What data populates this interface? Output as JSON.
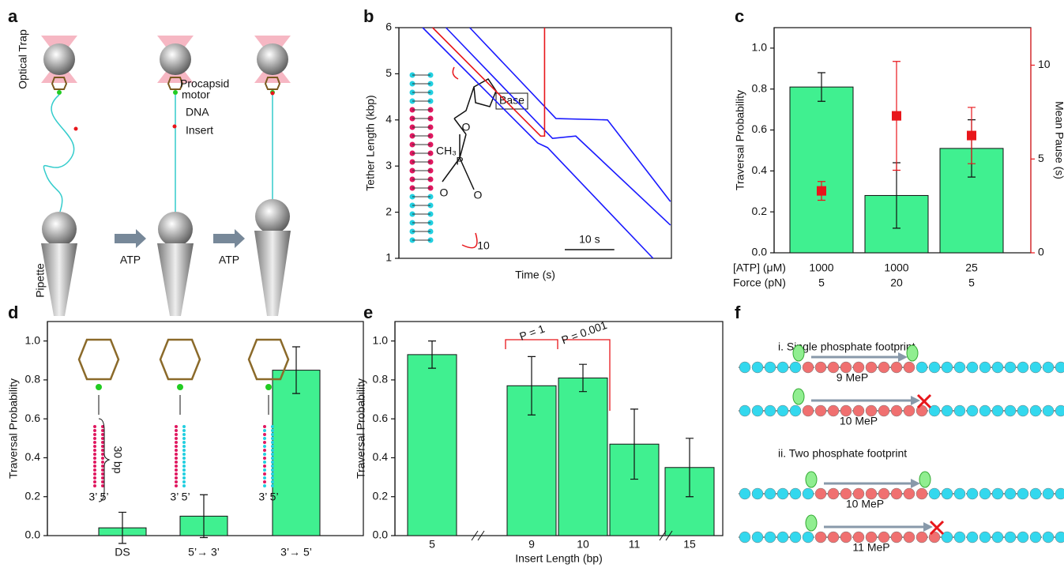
{
  "panels": [
    "a",
    "b",
    "c",
    "d",
    "e",
    "f"
  ],
  "panel_a": {
    "labels": [
      "Optical Trap",
      "Procapsid",
      "motor",
      "DNA",
      "Insert",
      "Pipette"
    ],
    "arrows": [
      "ATP",
      "ATP"
    ]
  },
  "panel_f": {
    "groups": [
      {
        "title": "i. Single phosphate footprint",
        "rows": [
          "9 MeP",
          "10 MeP"
        ]
      },
      {
        "title": "ii. Two phosphate footprint",
        "rows": [
          "10 MeP",
          "11 MeP"
        ]
      }
    ]
  },
  "chart_data": [
    {
      "type": "line",
      "ylabel": "Tether Length (kbp)",
      "xlabel": "Time (s)",
      "xlim": [
        0,
        55
      ],
      "ylim": [
        1,
        6
      ],
      "yticks": [
        1,
        2,
        3,
        4,
        5,
        6
      ],
      "series": [
        {
          "color": "#1a1aff",
          "x": [
            4.8,
            28,
            30,
            51.3
          ],
          "values": [
            6,
            3.5,
            3.4,
            1
          ]
        },
        {
          "color": "#1a1aff",
          "x": [
            9.5,
            31,
            35.7,
            54.8
          ],
          "values": [
            6,
            3.6,
            3.65,
            1.72
          ]
        },
        {
          "color": "#1a1aff",
          "x": [
            14.3,
            31.7,
            42.1,
            54.8
          ],
          "values": [
            6,
            4.03,
            4,
            2.23
          ]
        },
        {
          "color": "#e8161b",
          "x": [
            6.8,
            28.6,
            29.4,
            29.4
          ],
          "values": [
            6,
            3.65,
            3.65,
            6
          ]
        }
      ],
      "scale_bar": {
        "value": 10,
        "label": "10 s"
      },
      "annotations": [
        "Base",
        "CH₃",
        "P",
        "O",
        "O",
        "O",
        "10"
      ]
    },
    {
      "type": "bar",
      "ylabel": "Traversal Probability",
      "y2label": "Mean Pause (s)",
      "ylim": [
        0,
        1.1
      ],
      "yticks": [
        {
          "value": 0,
          "label": "0.0"
        },
        {
          "value": 0.2,
          "label": "0.2"
        },
        {
          "value": 0.4,
          "label": "0.4"
        },
        {
          "value": 0.6,
          "label": "0.6"
        },
        {
          "value": 0.8,
          "label": "0.8"
        },
        {
          "value": 1,
          "label": "1.0"
        }
      ],
      "y2lim": [
        0,
        12
      ],
      "y2ticks": [
        0,
        5,
        10
      ],
      "category_rows": [
        {
          "label": "[ATP] (μM)",
          "values": [
            "1000",
            "1000",
            "25"
          ]
        },
        {
          "label": "Force (pN)",
          "values": [
            "5",
            "20",
            "5"
          ]
        }
      ],
      "series": [
        {
          "color": "#40f090",
          "values": [
            0.81,
            0.28,
            0.51
          ],
          "errors": [
            0.07,
            0.16,
            0.14
          ]
        },
        {
          "color": "#e8161b",
          "axis": "y2",
          "marker": "square",
          "values": [
            3.3,
            7.3,
            6.25
          ],
          "errors": [
            0.5,
            2.9,
            1.5
          ]
        }
      ]
    },
    {
      "type": "bar",
      "ylabel": "Traversal Probability",
      "ylim": [
        0,
        1.1
      ],
      "yticks": [
        {
          "value": 0,
          "label": "0.0"
        },
        {
          "value": 0.2,
          "label": "0.2"
        },
        {
          "value": 0.4,
          "label": "0.4"
        },
        {
          "value": 0.6,
          "label": "0.6"
        },
        {
          "value": 0.8,
          "label": "0.8"
        },
        {
          "value": 1,
          "label": "1.0"
        }
      ],
      "categories": [
        "DS",
        "5’→ 3’",
        "3’→ 5’"
      ],
      "series": [
        {
          "color": "#40f090",
          "values": [
            0.04,
            0.1,
            0.85
          ],
          "errors": [
            0.08,
            0.11,
            0.12
          ]
        }
      ],
      "annotations": [
        "30 bp",
        "3’ 5’",
        "3’ 5’",
        "3’ 5’"
      ]
    },
    {
      "type": "bar",
      "ylabel": "Traversal Probability",
      "xlabel": "Insert Length (bp)",
      "ylim": [
        0,
        1.1
      ],
      "yticks": [
        {
          "value": 0,
          "label": "0.0"
        },
        {
          "value": 0.2,
          "label": "0.2"
        },
        {
          "value": 0.4,
          "label": "0.4"
        },
        {
          "value": 0.6,
          "label": "0.6"
        },
        {
          "value": 0.8,
          "label": "0.8"
        },
        {
          "value": 1,
          "label": "1.0"
        }
      ],
      "categories": [
        "5",
        "9",
        "10",
        "11",
        "15"
      ],
      "series": [
        {
          "color": "#40f090",
          "values": [
            0.93,
            0.77,
            0.81,
            0.47,
            0.35
          ],
          "errors": [
            0.07,
            0.15,
            0.07,
            0.18,
            0.15
          ]
        }
      ],
      "annotations": [
        "P = 1",
        "P = 0.001"
      ]
    }
  ]
}
